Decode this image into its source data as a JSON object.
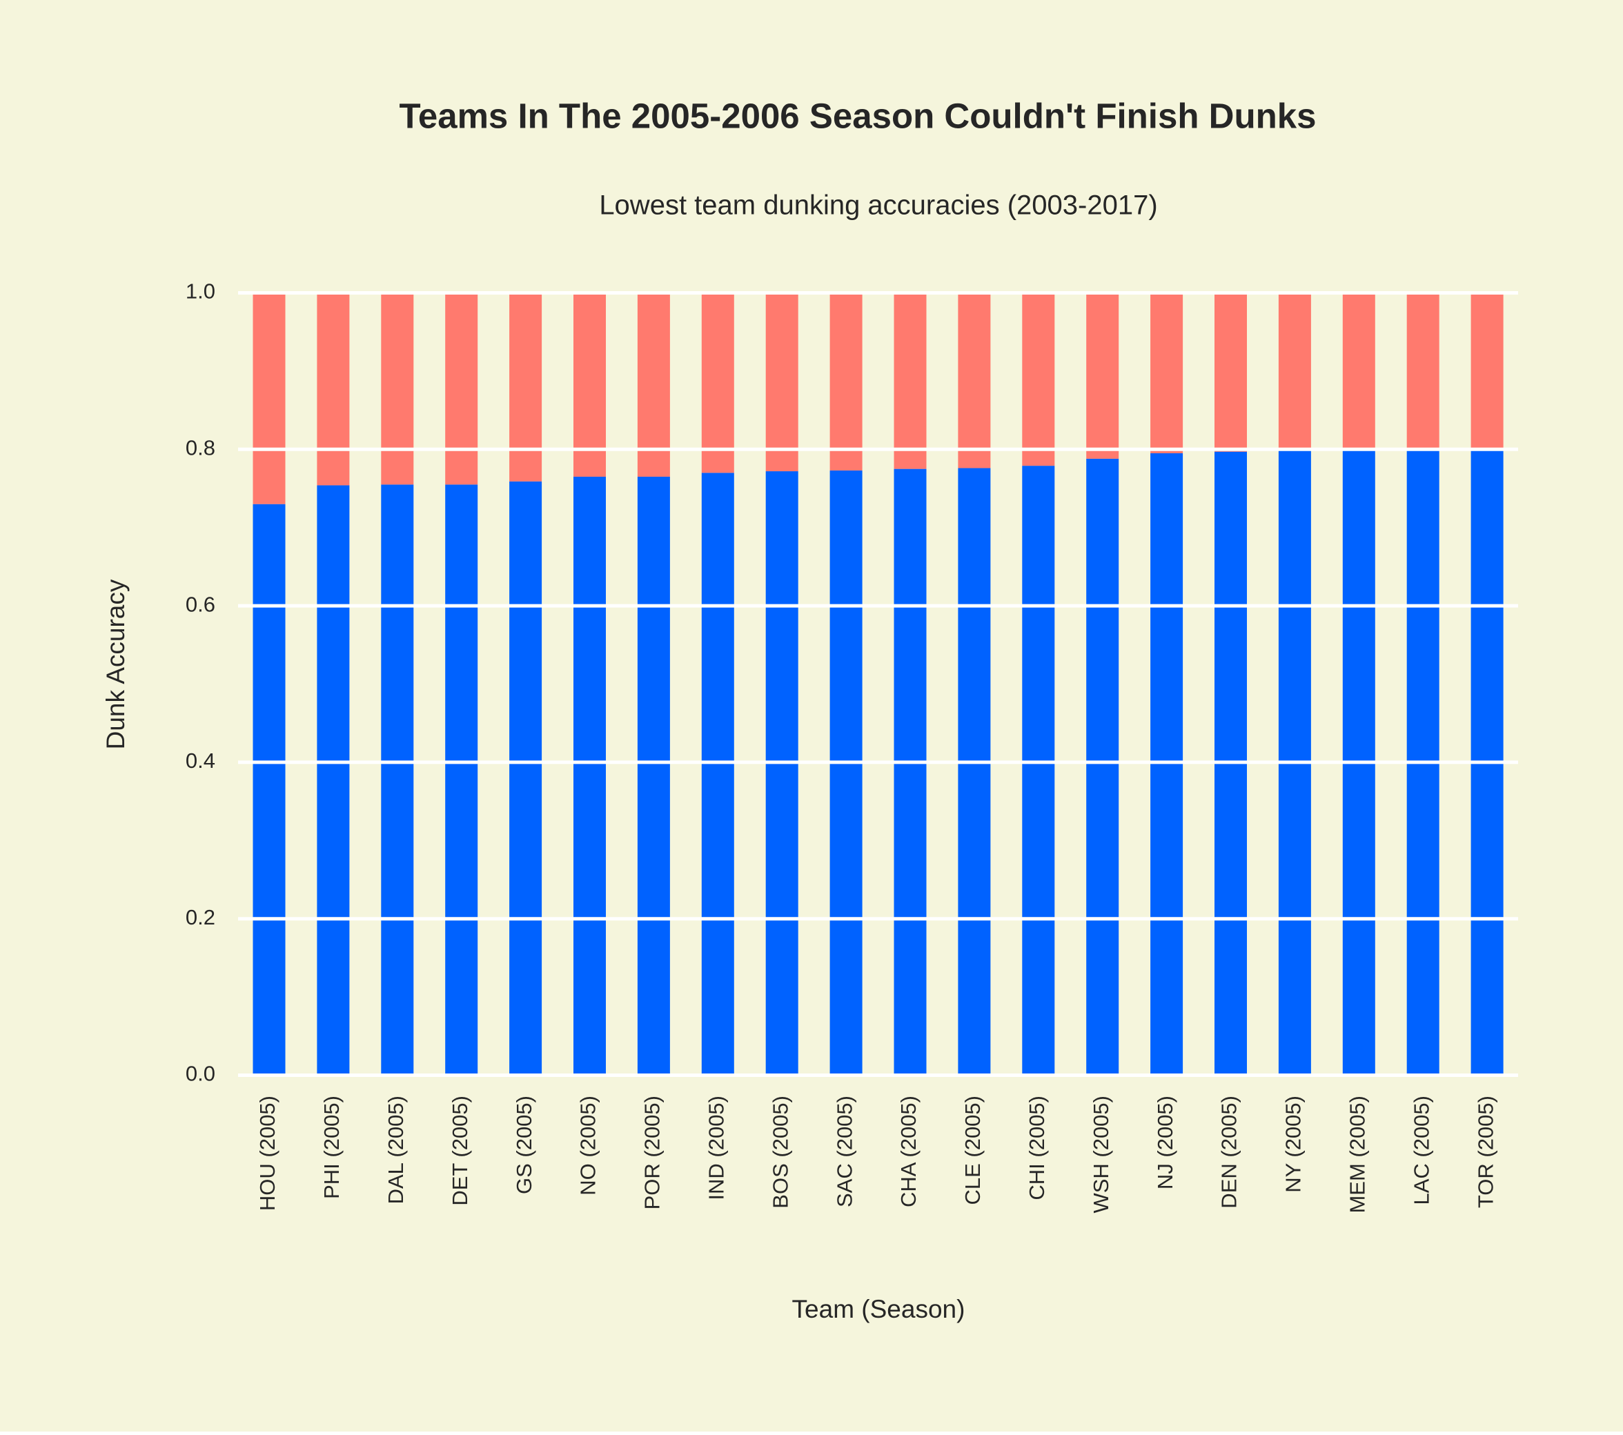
{
  "chart_data": {
    "type": "stacked_bar",
    "title": "Teams In The 2005-2006 Season Couldn't Finish Dunks",
    "subtitle": "Lowest team dunking accuracies (2003-2017)",
    "x_label": "Team (Season)",
    "y_label": "Dunk Accuracy",
    "categories": [
      "HOU (2005)",
      "PHI (2005)",
      "DAL (2005)",
      "DET (2005)",
      "GS (2005)",
      "NO (2005)",
      "POR (2005)",
      "IND (2005)",
      "BOS (2005)",
      "SAC (2005)",
      "CHA (2005)",
      "CLE (2005)",
      "CHI (2005)",
      "WSH (2005)",
      "NJ (2005)",
      "DEN (2005)",
      "NY (2005)",
      "MEM (2005)",
      "LAC (2005)",
      "TOR (2005)"
    ],
    "series": [
      {
        "color": "#0062ff",
        "values": [
          0.73,
          0.754,
          0.755,
          0.755,
          0.759,
          0.765,
          0.765,
          0.77,
          0.772,
          0.773,
          0.775,
          0.776,
          0.779,
          0.788,
          0.795,
          0.797,
          0.799,
          0.8,
          0.8,
          0.8
        ]
      },
      {
        "color": "#ff7a6e",
        "values": [
          0.27,
          0.246,
          0.245,
          0.245,
          0.241,
          0.235,
          0.235,
          0.23,
          0.228,
          0.227,
          0.225,
          0.224,
          0.221,
          0.212,
          0.205,
          0.203,
          0.201,
          0.2,
          0.2,
          0.2
        ]
      }
    ],
    "ylim": [
      0,
      1
    ],
    "yticks": [
      {
        "value": 0,
        "label": "0.0"
      },
      0.2,
      0.4,
      0.6,
      0.8,
      {
        "value": 1,
        "label": "1.0"
      }
    ],
    "grid": true,
    "background": "#f5f5dc"
  }
}
